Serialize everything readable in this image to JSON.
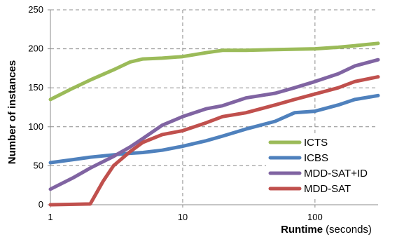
{
  "chart_data": {
    "type": "line",
    "title": "",
    "xlabel": "Runtime",
    "xlabel_unit": "(seconds)",
    "ylabel": "Number of instances",
    "x_scale": "log",
    "xlim": [
      1,
      300
    ],
    "ylim": [
      0,
      250
    ],
    "x_ticks": [
      1,
      10,
      100
    ],
    "x_tick_labels": [
      "1",
      "10",
      "100"
    ],
    "y_ticks": [
      0,
      50,
      100,
      150,
      200,
      250
    ],
    "y_tick_labels": [
      "0",
      "50",
      "100",
      "150",
      "200",
      "250"
    ],
    "grid": true,
    "legend_position": "bottom-right",
    "series": [
      {
        "name": "ICTS",
        "color": "#9bbb59",
        "points": [
          [
            1,
            135
          ],
          [
            1.5,
            150
          ],
          [
            2,
            160
          ],
          [
            3,
            173
          ],
          [
            4,
            183
          ],
          [
            5,
            187
          ],
          [
            7,
            188
          ],
          [
            10,
            190
          ],
          [
            15,
            195
          ],
          [
            20,
            198
          ],
          [
            30,
            198
          ],
          [
            50,
            199
          ],
          [
            100,
            200
          ],
          [
            150,
            202
          ],
          [
            200,
            204
          ],
          [
            300,
            207
          ]
        ]
      },
      {
        "name": "ICBS",
        "color": "#4f81bd",
        "points": [
          [
            1,
            54
          ],
          [
            1.5,
            58
          ],
          [
            2,
            61
          ],
          [
            3,
            64
          ],
          [
            4,
            66
          ],
          [
            5,
            67
          ],
          [
            7,
            70
          ],
          [
            10,
            75
          ],
          [
            15,
            82
          ],
          [
            20,
            88
          ],
          [
            30,
            97
          ],
          [
            50,
            107
          ],
          [
            70,
            118
          ],
          [
            100,
            120
          ],
          [
            150,
            128
          ],
          [
            200,
            135
          ],
          [
            300,
            140
          ]
        ]
      },
      {
        "name": "MDD-SAT+ID",
        "color": "#8064a2",
        "points": [
          [
            1,
            20
          ],
          [
            1.5,
            35
          ],
          [
            2,
            47
          ],
          [
            3,
            62
          ],
          [
            4,
            74
          ],
          [
            5,
            85
          ],
          [
            7,
            102
          ],
          [
            10,
            113
          ],
          [
            15,
            123
          ],
          [
            20,
            127
          ],
          [
            30,
            137
          ],
          [
            50,
            143
          ],
          [
            70,
            150
          ],
          [
            100,
            158
          ],
          [
            150,
            168
          ],
          [
            200,
            178
          ],
          [
            300,
            186
          ]
        ]
      },
      {
        "name": "MDD-SAT",
        "color": "#c0504d",
        "points": [
          [
            1,
            0
          ],
          [
            1.5,
            0.5
          ],
          [
            2,
            1
          ],
          [
            2.5,
            30
          ],
          [
            3,
            50
          ],
          [
            4,
            68
          ],
          [
            5,
            80
          ],
          [
            7,
            90
          ],
          [
            10,
            95
          ],
          [
            15,
            105
          ],
          [
            20,
            113
          ],
          [
            30,
            118
          ],
          [
            50,
            128
          ],
          [
            70,
            135
          ],
          [
            100,
            142
          ],
          [
            150,
            150
          ],
          [
            200,
            158
          ],
          [
            300,
            164
          ]
        ]
      }
    ]
  }
}
